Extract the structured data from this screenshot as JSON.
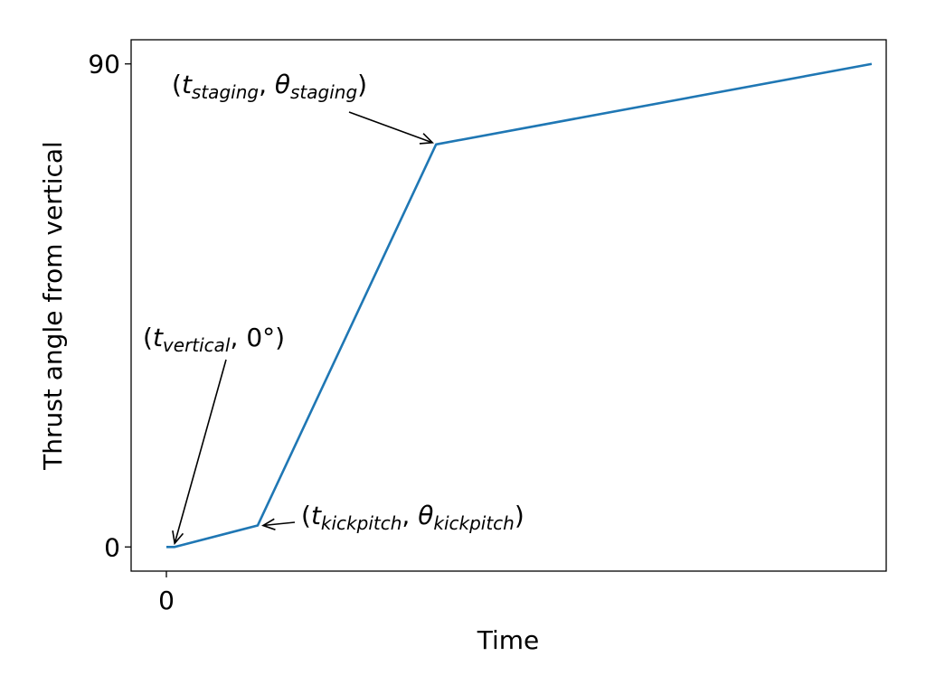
{
  "chart_data": {
    "type": "line",
    "title": "",
    "xlabel": "Time",
    "ylabel": "Thrust angle from vertical",
    "xlim": [
      -0.85,
      17.35
    ],
    "ylim": [
      -4.5,
      94.5
    ],
    "x_ticks": [
      {
        "value": 0,
        "label": "0"
      }
    ],
    "y_ticks": [
      {
        "value": 0,
        "label": "0"
      },
      {
        "value": 90,
        "label": "90"
      }
    ],
    "grid": false,
    "legend": "none",
    "series": [
      {
        "color": "#1f77b4",
        "x": [
          0,
          0.2,
          2.2,
          6.5,
          17
        ],
        "y": [
          0,
          0,
          4,
          75,
          90
        ]
      }
    ],
    "annotations": [
      {
        "id": "vertical",
        "open": "(",
        "var": "t",
        "sub1": "vertical",
        "sep": ", ",
        "second": "0°",
        "close": ")",
        "target": [
          0.2,
          0
        ]
      },
      {
        "id": "kickpitch",
        "open": "(",
        "var": "t",
        "sub1": "kickpitch",
        "sep": ", ",
        "second": "θ",
        "sub2": "kickpitch",
        "close": ")",
        "target": [
          2.2,
          4
        ]
      },
      {
        "id": "staging",
        "open": "(",
        "var": "t",
        "sub1": "staging",
        "sep": ", ",
        "second": "θ",
        "sub2": "staging",
        "close": ")",
        "target": [
          6.5,
          75
        ]
      }
    ]
  }
}
